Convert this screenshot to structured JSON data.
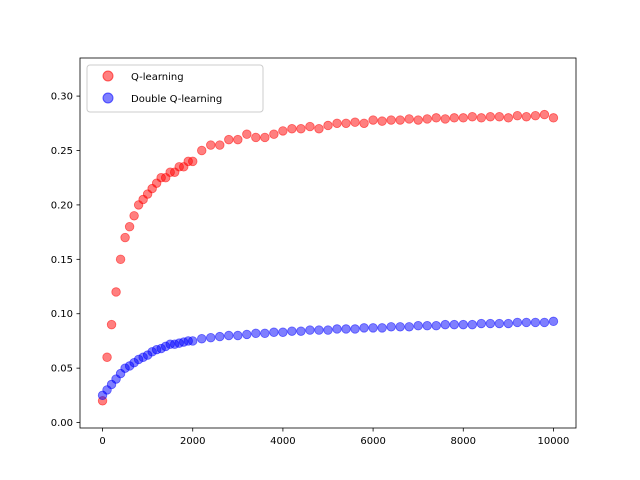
{
  "chart_data": {
    "type": "scatter",
    "title": "",
    "xlabel": "",
    "ylabel": "",
    "xlim": [
      -500,
      10500
    ],
    "ylim": [
      -0.005,
      0.335
    ],
    "x_ticks": [
      0,
      2000,
      4000,
      6000,
      8000,
      10000
    ],
    "x_tick_labels": [
      "0",
      "2000",
      "4000",
      "6000",
      "8000",
      "10000"
    ],
    "y_ticks": [
      0.0,
      0.05,
      0.1,
      0.15,
      0.2,
      0.25,
      0.3
    ],
    "y_tick_labels": [
      "0.00",
      "0.05",
      "0.10",
      "0.15",
      "0.20",
      "0.25",
      "0.30"
    ],
    "grid": false,
    "legend_position": "upper-left",
    "series": [
      {
        "name": "Q-learning",
        "color": "#ff0000",
        "x": [
          0,
          100,
          200,
          300,
          400,
          500,
          600,
          700,
          800,
          900,
          1000,
          1100,
          1200,
          1300,
          1400,
          1500,
          1600,
          1700,
          1800,
          1900,
          2000,
          2200,
          2400,
          2600,
          2800,
          3000,
          3200,
          3400,
          3600,
          3800,
          4000,
          4200,
          4400,
          4600,
          4800,
          5000,
          5200,
          5400,
          5600,
          5800,
          6000,
          6200,
          6400,
          6600,
          6800,
          7000,
          7200,
          7400,
          7600,
          7800,
          8000,
          8200,
          8400,
          8600,
          8800,
          9000,
          9200,
          9400,
          9600,
          9800,
          10000
        ],
        "y": [
          0.02,
          0.06,
          0.09,
          0.12,
          0.15,
          0.17,
          0.18,
          0.19,
          0.2,
          0.205,
          0.21,
          0.215,
          0.22,
          0.225,
          0.225,
          0.23,
          0.23,
          0.235,
          0.235,
          0.24,
          0.24,
          0.25,
          0.255,
          0.255,
          0.26,
          0.26,
          0.265,
          0.262,
          0.262,
          0.265,
          0.268,
          0.27,
          0.27,
          0.272,
          0.27,
          0.273,
          0.275,
          0.275,
          0.276,
          0.275,
          0.278,
          0.277,
          0.278,
          0.278,
          0.279,
          0.278,
          0.279,
          0.28,
          0.279,
          0.28,
          0.28,
          0.281,
          0.28,
          0.281,
          0.281,
          0.28,
          0.282,
          0.281,
          0.282,
          0.283,
          0.28
        ]
      },
      {
        "name": "Double Q-learning",
        "color": "#0000ff",
        "x": [
          0,
          100,
          200,
          300,
          400,
          500,
          600,
          700,
          800,
          900,
          1000,
          1100,
          1200,
          1300,
          1400,
          1500,
          1600,
          1700,
          1800,
          1900,
          2000,
          2200,
          2400,
          2600,
          2800,
          3000,
          3200,
          3400,
          3600,
          3800,
          4000,
          4200,
          4400,
          4600,
          4800,
          5000,
          5200,
          5400,
          5600,
          5800,
          6000,
          6200,
          6400,
          6600,
          6800,
          7000,
          7200,
          7400,
          7600,
          7800,
          8000,
          8200,
          8400,
          8600,
          8800,
          9000,
          9200,
          9400,
          9600,
          9800,
          10000
        ],
        "y": [
          0.025,
          0.03,
          0.035,
          0.04,
          0.045,
          0.05,
          0.052,
          0.055,
          0.058,
          0.06,
          0.062,
          0.065,
          0.067,
          0.068,
          0.07,
          0.072,
          0.072,
          0.073,
          0.074,
          0.075,
          0.075,
          0.077,
          0.078,
          0.079,
          0.08,
          0.08,
          0.081,
          0.082,
          0.082,
          0.083,
          0.083,
          0.084,
          0.084,
          0.085,
          0.085,
          0.085,
          0.086,
          0.086,
          0.086,
          0.087,
          0.087,
          0.087,
          0.088,
          0.088,
          0.088,
          0.089,
          0.089,
          0.089,
          0.09,
          0.09,
          0.09,
          0.09,
          0.091,
          0.091,
          0.091,
          0.091,
          0.092,
          0.092,
          0.092,
          0.092,
          0.093
        ]
      }
    ]
  }
}
